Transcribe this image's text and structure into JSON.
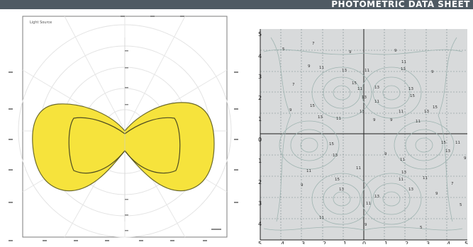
{
  "header": {
    "title": "PHOTOMETRIC DATA SHEET"
  },
  "polar": {
    "legend_label": "Light Source",
    "fill_color": "#f6e33c",
    "outline_color": "#6c6a2a"
  },
  "contour": {
    "background": "#d8dadb",
    "line_color": "#9fb4b1",
    "axis_labels_top": [
      "5"
    ],
    "axis_labels_left": [
      "5",
      "4",
      "3",
      "2",
      "1",
      "0",
      "1",
      "2",
      "3",
      "4",
      "5"
    ],
    "axis_labels_bottom": [
      "5",
      "4",
      "3",
      "2",
      "1",
      "0",
      "1",
      "2",
      "3",
      "4",
      "5"
    ],
    "value_labels": [
      "7",
      "5",
      "9",
      "9",
      "11",
      "13",
      "11",
      "15",
      "11",
      "13",
      "9",
      "7",
      "9",
      "11",
      "13",
      "13",
      "15",
      "13",
      "11",
      "13",
      "9",
      "15",
      "13",
      "15",
      "11",
      "9",
      "9",
      "11",
      "13",
      "11",
      "15",
      "9",
      "11",
      "11",
      "13",
      "13",
      "15",
      "9",
      "13",
      "11",
      "15",
      "11",
      "9",
      "13",
      "13",
      "11",
      "11",
      "9",
      "7",
      "5",
      "11",
      "11",
      "9",
      "13",
      "5"
    ]
  }
}
